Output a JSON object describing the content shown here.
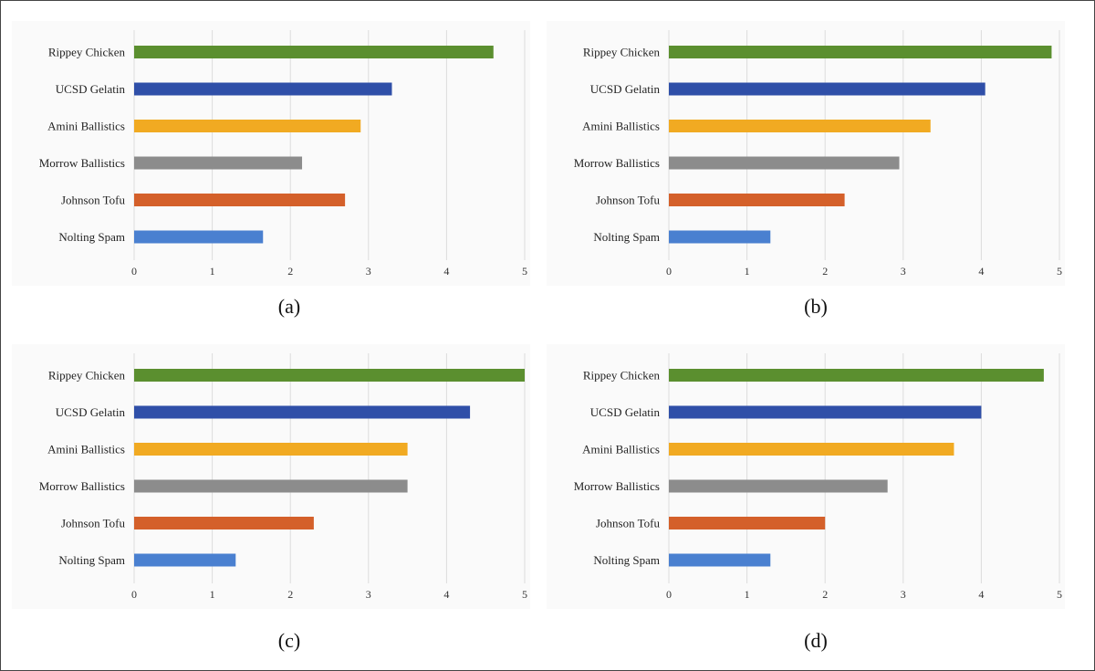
{
  "chart_data": [
    {
      "type": "bar",
      "orientation": "horizontal",
      "caption": "(a)",
      "categories": [
        "Rippey Chicken",
        "UCSD Gelatin",
        "Amini Ballistics",
        "Morrow Ballistics",
        "Johnson Tofu",
        "Nolting Spam"
      ],
      "values": [
        4.6,
        3.3,
        2.9,
        2.15,
        2.7,
        1.65
      ],
      "xlim": [
        0,
        5
      ],
      "xticks": [
        "0",
        "1",
        "2",
        "3",
        "4",
        "5"
      ],
      "grid": true
    },
    {
      "type": "bar",
      "orientation": "horizontal",
      "caption": "(b)",
      "categories": [
        "Rippey Chicken",
        "UCSD Gelatin",
        "Amini Ballistics",
        "Morrow Ballistics",
        "Johnson Tofu",
        "Nolting Spam"
      ],
      "values": [
        4.9,
        4.05,
        3.35,
        2.95,
        2.25,
        1.3
      ],
      "xlim": [
        0,
        5
      ],
      "xticks": [
        "0",
        "1",
        "2",
        "3",
        "4",
        "5"
      ],
      "grid": true
    },
    {
      "type": "bar",
      "orientation": "horizontal",
      "caption": "(c)",
      "categories": [
        "Rippey Chicken",
        "UCSD Gelatin",
        "Amini Ballistics",
        "Morrow Ballistics",
        "Johnson Tofu",
        "Nolting Spam"
      ],
      "values": [
        5.0,
        4.3,
        3.5,
        3.5,
        2.3,
        1.3
      ],
      "xlim": [
        0,
        5
      ],
      "xticks": [
        "0",
        "1",
        "2",
        "3",
        "4",
        "5"
      ],
      "grid": true
    },
    {
      "type": "bar",
      "orientation": "horizontal",
      "caption": "(d)",
      "categories": [
        "Rippey Chicken",
        "UCSD Gelatin",
        "Amini Ballistics",
        "Morrow Ballistics",
        "Johnson Tofu",
        "Nolting Spam"
      ],
      "values": [
        4.8,
        4.0,
        3.65,
        2.8,
        2.0,
        1.3
      ],
      "xlim": [
        0,
        5
      ],
      "xticks": [
        "0",
        "1",
        "2",
        "3",
        "4",
        "5"
      ],
      "grid": true
    }
  ],
  "colors": [
    "#5b8f2f",
    "#2f4fa8",
    "#f1aa22",
    "#8c8c8c",
    "#d4602a",
    "#4a80d0"
  ]
}
